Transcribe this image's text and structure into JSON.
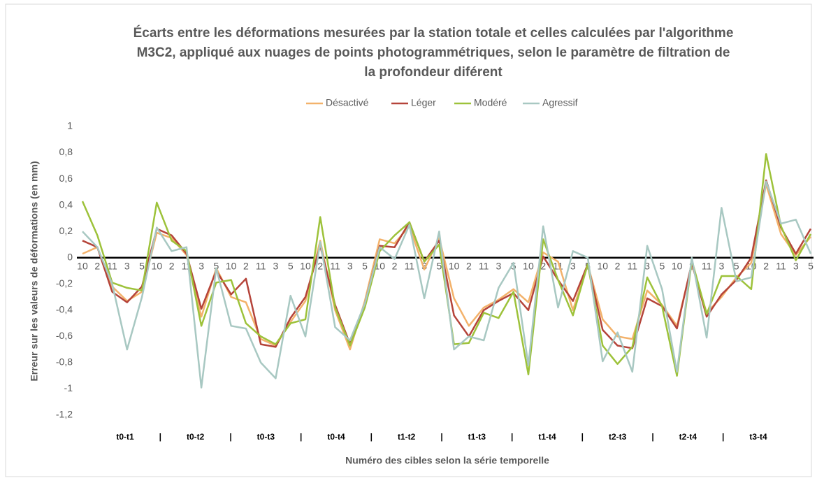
{
  "chart_data": {
    "type": "line",
    "title_lines": [
      "Écarts entre les déformations mesurées par la station totale et celles calculées par l'algorithme",
      "M3C2, appliqué aux nuages de points photogrammétriques, selon le paramètre de filtration de",
      "la profondeur diférent"
    ],
    "ylabel": "Erreur sur les valeurs de déformations (en mm)",
    "xlabel": "Numéro des cibles selon la série temporelle",
    "categories": [
      "10",
      "2",
      "11",
      "3",
      "5",
      "10",
      "2",
      "11",
      "3",
      "5",
      "10",
      "2",
      "11",
      "3",
      "5",
      "10",
      "2",
      "11",
      "3",
      "5",
      "10",
      "2",
      "11",
      "3",
      "5",
      "10",
      "2",
      "11",
      "3",
      "5",
      "10",
      "2",
      "11",
      "3",
      "5",
      "10",
      "2",
      "11",
      "3",
      "5",
      "10",
      "2",
      "11",
      "3",
      "5",
      "10",
      "2",
      "11",
      "3",
      "5"
    ],
    "groups": [
      "t0-t1",
      "t0-t2",
      "t0-t3",
      "t0-t4",
      "t1-t2",
      "t1-t3",
      "t1-t4",
      "t2-t3",
      "t2-t4",
      "t3-t4"
    ],
    "group_separator": "|",
    "ylim": [
      -1.2,
      1
    ],
    "yticks": [
      {
        "value": -1.2,
        "label": "-1,2"
      },
      -1,
      {
        "value": -0.8,
        "label": "-0,8"
      },
      {
        "value": -0.6,
        "label": "-0,6"
      },
      {
        "value": -0.4,
        "label": "-0,4"
      },
      {
        "value": -0.2,
        "label": "-0,2"
      },
      0,
      {
        "value": 0.2,
        "label": "0,2"
      },
      {
        "value": 0.4,
        "label": "0,4"
      },
      {
        "value": 0.6,
        "label": "0,6"
      },
      {
        "value": 0.8,
        "label": "0,8"
      },
      1
    ],
    "grid": false,
    "legend": "top",
    "series": [
      {
        "name": "Désactivé",
        "color": "#f3b26b",
        "values": [
          0.03,
          0.08,
          -0.22,
          -0.33,
          -0.26,
          0.19,
          0.15,
          0.02,
          -0.45,
          -0.08,
          -0.3,
          -0.34,
          -0.62,
          -0.67,
          -0.49,
          -0.33,
          0.13,
          -0.4,
          -0.7,
          -0.33,
          0.14,
          0.11,
          0.24,
          -0.09,
          0.15,
          -0.31,
          -0.52,
          -0.38,
          -0.32,
          -0.24,
          -0.34,
          0.04,
          -0.03,
          -0.4,
          -0.05,
          -0.47,
          -0.6,
          -0.62,
          -0.25,
          -0.36,
          -0.52,
          -0.05,
          -0.42,
          -0.3,
          -0.15,
          -0.04,
          0.56,
          0.18,
          0.02,
          0.16
        ]
      },
      {
        "name": "Léger",
        "color": "#b5443a",
        "values": [
          0.13,
          0.08,
          -0.26,
          -0.34,
          -0.22,
          0.22,
          0.17,
          0.03,
          -0.39,
          -0.1,
          -0.28,
          -0.16,
          -0.66,
          -0.68,
          -0.46,
          -0.3,
          0.09,
          -0.36,
          -0.66,
          -0.35,
          0.09,
          0.08,
          0.27,
          -0.03,
          0.13,
          -0.44,
          -0.6,
          -0.4,
          -0.33,
          -0.27,
          -0.4,
          0.01,
          -0.17,
          -0.33,
          -0.05,
          -0.55,
          -0.67,
          -0.69,
          -0.31,
          -0.37,
          -0.54,
          -0.04,
          -0.45,
          -0.28,
          -0.17,
          0.0,
          0.59,
          0.23,
          0.03,
          0.22
        ]
      },
      {
        "name": "Modéré",
        "color": "#9dc23a",
        "values": [
          0.43,
          0.17,
          -0.19,
          -0.23,
          -0.25,
          0.42,
          0.13,
          0.05,
          -0.52,
          -0.19,
          -0.17,
          -0.5,
          -0.6,
          -0.66,
          -0.5,
          -0.47,
          0.31,
          -0.38,
          -0.67,
          -0.38,
          0.05,
          0.17,
          0.27,
          -0.03,
          0.1,
          -0.66,
          -0.65,
          -0.42,
          -0.46,
          -0.26,
          -0.89,
          0.14,
          -0.17,
          -0.44,
          -0.05,
          -0.67,
          -0.81,
          -0.68,
          -0.15,
          -0.37,
          -0.9,
          -0.02,
          -0.43,
          -0.14,
          -0.14,
          -0.24,
          0.79,
          0.24,
          -0.02,
          0.18
        ]
      },
      {
        "name": "Agressif",
        "color": "#a8c8c2",
        "values": [
          0.2,
          0.08,
          -0.2,
          -0.7,
          -0.3,
          0.23,
          0.05,
          0.08,
          -0.99,
          -0.08,
          -0.52,
          -0.54,
          -0.8,
          -0.92,
          -0.29,
          -0.6,
          0.12,
          -0.53,
          -0.63,
          -0.35,
          0.08,
          -0.01,
          0.25,
          -0.31,
          0.2,
          -0.7,
          -0.6,
          -0.63,
          -0.23,
          -0.04,
          -0.82,
          0.24,
          -0.38,
          0.05,
          0.0,
          -0.79,
          -0.57,
          -0.87,
          0.09,
          -0.24,
          -0.87,
          0.0,
          -0.61,
          0.38,
          -0.18,
          -0.15,
          0.58,
          0.26,
          0.29,
          0.03
        ]
      }
    ]
  }
}
